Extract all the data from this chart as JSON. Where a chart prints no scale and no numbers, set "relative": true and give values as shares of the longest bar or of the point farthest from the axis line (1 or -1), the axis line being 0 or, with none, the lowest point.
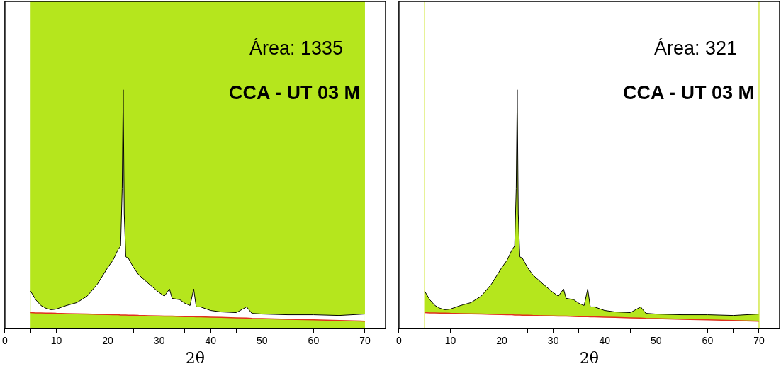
{
  "chart_data": [
    {
      "type": "line",
      "relative": true,
      "xlabel": "2θ",
      "xlim": [
        0,
        74
      ],
      "xticks": [
        0,
        {
          "value": 5,
          "label": null
        },
        10,
        {
          "value": 15,
          "label": null
        },
        20,
        {
          "value": 25,
          "label": null
        },
        30,
        {
          "value": 35,
          "label": null
        },
        40,
        {
          "value": 45,
          "label": null
        },
        50,
        {
          "value": 55,
          "label": null
        },
        60,
        {
          "value": 65,
          "label": null
        },
        70
      ],
      "annotations": [
        "Área: 1335",
        "CCA - UT 03 M"
      ],
      "bands": [
        {
          "axis": "x",
          "from": 5,
          "to": 70,
          "color": "#b5e61d"
        }
      ],
      "x": [
        5,
        6,
        7,
        8,
        9,
        10,
        12,
        14,
        16,
        18,
        20,
        21,
        22,
        22.5,
        22.8,
        23,
        23.2,
        23.5,
        24,
        25,
        26,
        28,
        30,
        31,
        32,
        32.5,
        34,
        35,
        36,
        36.7,
        37.2,
        38,
        40,
        42,
        45,
        47,
        48,
        50,
        55,
        60,
        65,
        70
      ],
      "series": [
        {
          "type": "area",
          "color": "#ffffff",
          "values": [
            0.156,
            0.12,
            0.096,
            0.084,
            0.078,
            0.081,
            0.096,
            0.108,
            0.135,
            0.186,
            0.255,
            0.285,
            0.33,
            0.345,
            0.585,
            1,
            0.48,
            0.3,
            0.294,
            0.255,
            0.225,
            0.186,
            0.15,
            0.135,
            0.165,
            0.126,
            0.12,
            0.105,
            0.096,
            0.165,
            0.09,
            0.09,
            0.075,
            0.069,
            0.066,
            0.09,
            0.063,
            0.06,
            0.057,
            0.057,
            0.054,
            0.06
          ]
        },
        {
          "color": "#e0301e",
          "values": [
            0.066,
            0.065,
            0.065,
            0.064,
            0.064,
            0.063,
            0.062,
            0.061,
            0.06,
            0.059,
            0.058,
            0.057,
            0.057,
            0.056,
            0.056,
            0.056,
            0.056,
            0.056,
            0.055,
            0.055,
            0.054,
            0.053,
            0.052,
            0.051,
            0.051,
            0.051,
            0.05,
            0.049,
            0.049,
            0.049,
            0.048,
            0.048,
            0.047,
            0.046,
            0.044,
            0.043,
            0.042,
            0.041,
            0.038,
            0.036,
            0.033,
            0.03
          ]
        }
      ]
    },
    {
      "type": "line",
      "relative": true,
      "xlabel": "2θ",
      "xlim": [
        0,
        74
      ],
      "xticks": [
        0,
        {
          "value": 5,
          "label": null
        },
        10,
        {
          "value": 15,
          "label": null
        },
        20,
        {
          "value": 25,
          "label": null
        },
        30,
        {
          "value": 35,
          "label": null
        },
        40,
        {
          "value": 45,
          "label": null
        },
        50,
        {
          "value": 55,
          "label": null
        },
        60,
        {
          "value": 65,
          "label": null
        },
        70
      ],
      "annotations": [
        "Área: 321",
        "CCA - UT 03 M"
      ],
      "ref_lines": [
        {
          "axis": "x",
          "value": 5,
          "color": "#d4e84a"
        },
        {
          "axis": "x",
          "value": 70,
          "color": "#d4e84a"
        }
      ],
      "x": [
        5,
        6,
        7,
        8,
        9,
        10,
        12,
        14,
        16,
        18,
        20,
        21,
        22,
        22.5,
        22.8,
        23,
        23.2,
        23.5,
        24,
        25,
        26,
        28,
        30,
        31,
        32,
        32.5,
        34,
        35,
        36,
        36.7,
        37.2,
        38,
        40,
        42,
        45,
        47,
        48,
        50,
        55,
        60,
        65,
        70
      ],
      "series": [
        {
          "type": "area",
          "color": "#b5e61d",
          "values": [
            0.156,
            0.12,
            0.096,
            0.084,
            0.078,
            0.081,
            0.096,
            0.108,
            0.135,
            0.186,
            0.255,
            0.285,
            0.33,
            0.345,
            0.585,
            1,
            0.48,
            0.3,
            0.294,
            0.255,
            0.225,
            0.186,
            0.15,
            0.135,
            0.165,
            0.126,
            0.12,
            0.105,
            0.096,
            0.165,
            0.09,
            0.09,
            0.075,
            0.069,
            0.066,
            0.09,
            0.063,
            0.06,
            0.057,
            0.057,
            0.054,
            0.06
          ]
        },
        {
          "color": "#e0301e",
          "values": [
            0.066,
            0.065,
            0.065,
            0.064,
            0.064,
            0.063,
            0.062,
            0.061,
            0.06,
            0.059,
            0.058,
            0.057,
            0.057,
            0.056,
            0.056,
            0.056,
            0.056,
            0.056,
            0.055,
            0.055,
            0.054,
            0.053,
            0.052,
            0.051,
            0.051,
            0.051,
            0.05,
            0.049,
            0.049,
            0.049,
            0.048,
            0.048,
            0.047,
            0.046,
            0.044,
            0.043,
            0.042,
            0.041,
            0.038,
            0.036,
            0.033,
            0.03
          ]
        }
      ]
    }
  ]
}
